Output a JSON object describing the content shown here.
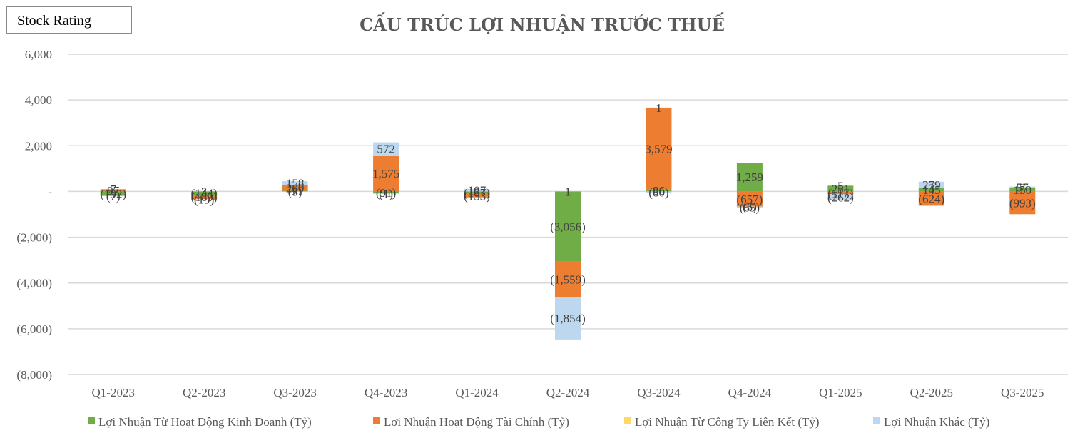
{
  "header": {
    "stock_rating_label": "Stock Rating"
  },
  "chart_data": {
    "type": "bar",
    "stacked": true,
    "title": "CẤU TRÚC LỢI NHUẬN TRƯỚC THUẾ",
    "xlabel": "",
    "ylabel": "",
    "ylim": [
      -8000,
      6000
    ],
    "yticks": [
      6000,
      4000,
      2000,
      0,
      -2000,
      -4000,
      -6000,
      -8000
    ],
    "ytick_labels": [
      "6,000",
      "4,000",
      "2,000",
      "-",
      "(2,000)",
      "(4,000)",
      "(6,000)",
      "(8,000)"
    ],
    "grid": true,
    "legend": "bottom",
    "categories": [
      "Q1-2023",
      "Q2-2023",
      "Q3-2023",
      "Q4-2023",
      "Q1-2024",
      "Q2-2024",
      "Q3-2024",
      "Q4-2024",
      "Q1-2025",
      "Q2-2025",
      "Q3-2025"
    ],
    "series": [
      {
        "name": "Lợi Nhuận Từ Hoạt Động Kinh Doanh (Tỷ)",
        "color": "#70ad47",
        "values": [
          -192,
          -144,
          30,
          -91,
          -107,
          -3056,
          86,
          1259,
          251,
          145,
          150
        ]
      },
      {
        "name": "Lợi Nhuận Hoạt Động Tài Chính (Tỷ)",
        "color": "#ed7d31",
        "values": [
          97,
          -189,
          260,
          1575,
          -153,
          -1559,
          3579,
          -657,
          -117,
          -624,
          -993
        ]
      },
      {
        "name": "Lợi Nhuận Từ Công Ty Liên Kết (Tỷ)",
        "color": "#ffd966",
        "values": [
          7,
          3,
          -5,
          -1,
          3,
          1,
          1,
          -5,
          5,
          3,
          7
        ]
      },
      {
        "name": "Lợi Nhuận Khác (Tỷ)",
        "color": "#bdd7ee",
        "values": [
          -7,
          -19,
          158,
          572,
          107,
          -1854,
          -80,
          -65,
          -262,
          279,
          57
        ]
      }
    ]
  }
}
